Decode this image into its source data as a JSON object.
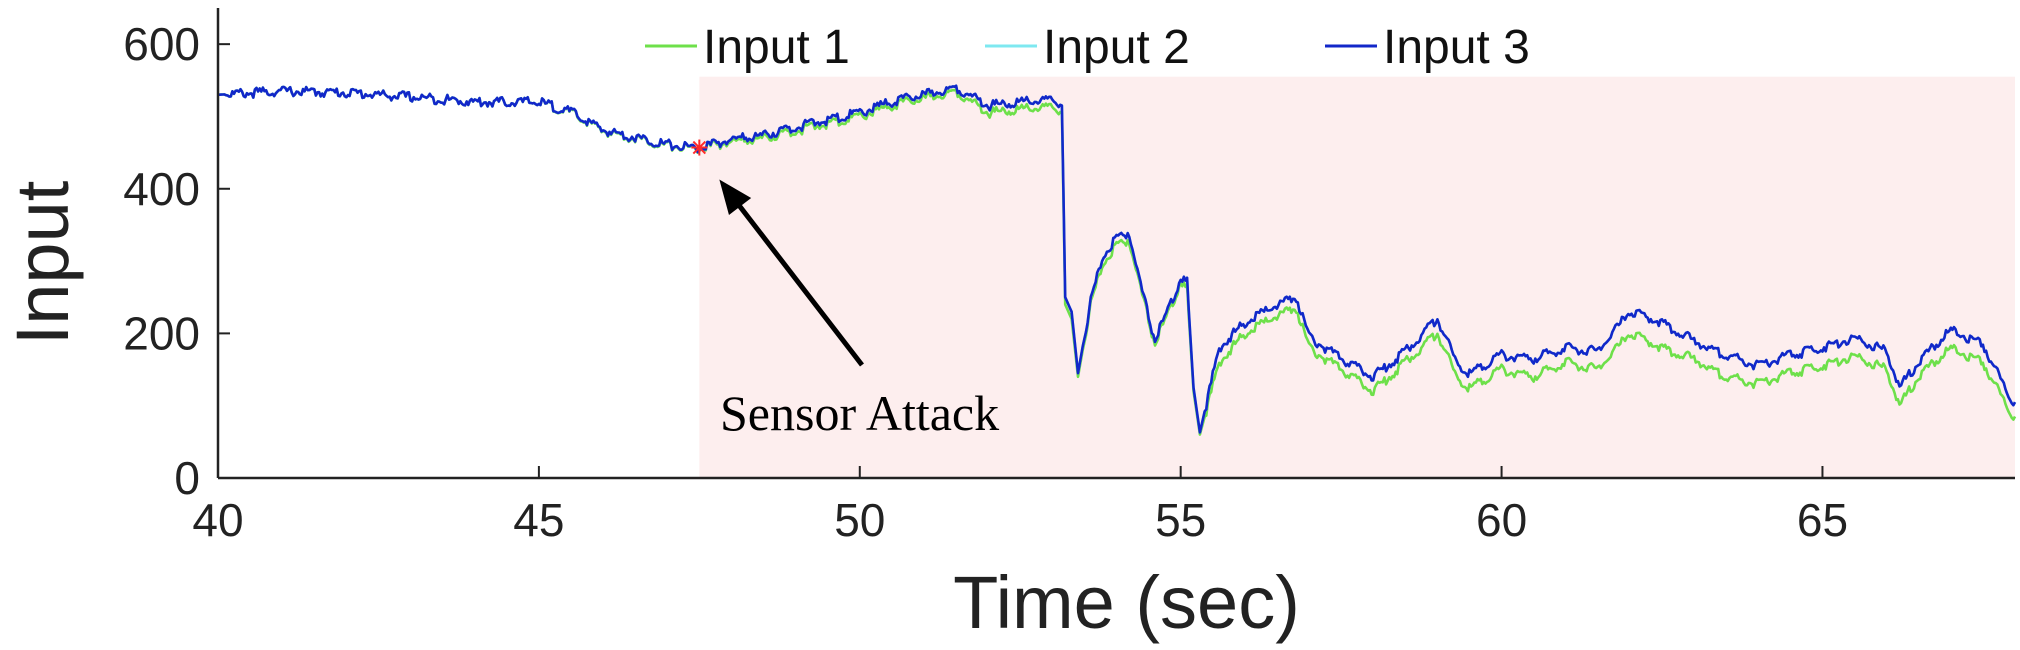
{
  "chart_data": {
    "type": "line",
    "title": "",
    "xlabel": "Time (sec)",
    "ylabel": "Input",
    "xlim": [
      40,
      68
    ],
    "ylim": [
      0,
      650
    ],
    "xticks": [
      "40",
      "45",
      "50",
      "55",
      "60",
      "65"
    ],
    "yticks": [
      "0",
      "200",
      "400",
      "600"
    ],
    "grid": false,
    "legend_position": "top",
    "highlight_region": {
      "x_start": 47.5,
      "x_end": 68,
      "y_end": 555,
      "color": "#fdeeee"
    },
    "annotation": {
      "text": "Sensor Attack",
      "point": [
        47.5,
        457
      ]
    },
    "series": [
      {
        "name": "Input 1",
        "color": "#6ee04a",
        "points": [
          [
            40,
            530
          ],
          [
            41,
            535
          ],
          [
            42,
            533
          ],
          [
            43,
            527
          ],
          [
            44,
            520
          ],
          [
            45,
            520
          ],
          [
            45.5,
            505
          ],
          [
            46,
            480
          ],
          [
            46.5,
            470
          ],
          [
            47,
            460
          ],
          [
            47.5,
            455
          ],
          [
            48,
            465
          ],
          [
            48.5,
            470
          ],
          [
            49,
            480
          ],
          [
            49.5,
            490
          ],
          [
            50,
            500
          ],
          [
            50.5,
            515
          ],
          [
            51,
            525
          ],
          [
            51.5,
            535
          ],
          [
            52,
            505
          ],
          [
            52.5,
            510
          ],
          [
            53,
            512
          ],
          [
            53.15,
            505
          ],
          [
            53.2,
            240
          ],
          [
            53.3,
            220
          ],
          [
            53.4,
            140
          ],
          [
            53.6,
            240
          ],
          [
            53.8,
            300
          ],
          [
            54,
            320
          ],
          [
            54.2,
            330
          ],
          [
            54.35,
            270
          ],
          [
            54.6,
            185
          ],
          [
            55,
            270
          ],
          [
            55.1,
            260
          ],
          [
            55.2,
            120
          ],
          [
            55.3,
            60
          ],
          [
            55.6,
            160
          ],
          [
            56,
            200
          ],
          [
            56.5,
            225
          ],
          [
            56.8,
            235
          ],
          [
            57,
            180
          ],
          [
            57.5,
            150
          ],
          [
            58,
            120
          ],
          [
            58.5,
            160
          ],
          [
            59,
            200
          ],
          [
            59.3,
            140
          ],
          [
            59.5,
            125
          ],
          [
            60,
            150
          ],
          [
            60.5,
            140
          ],
          [
            61,
            160
          ],
          [
            61.5,
            150
          ],
          [
            62,
            200
          ],
          [
            62.5,
            180
          ],
          [
            63,
            165
          ],
          [
            63.5,
            140
          ],
          [
            64,
            130
          ],
          [
            64.5,
            145
          ],
          [
            65,
            155
          ],
          [
            65.5,
            170
          ],
          [
            66,
            150
          ],
          [
            66.2,
            100
          ],
          [
            66.5,
            140
          ],
          [
            67,
            180
          ],
          [
            67.5,
            160
          ],
          [
            67.9,
            95
          ],
          [
            68,
            85
          ]
        ]
      },
      {
        "name": "Input 2",
        "color": "#7ee8f0",
        "points": [
          [
            40,
            530
          ],
          [
            41,
            535
          ],
          [
            42,
            533
          ],
          [
            43,
            527
          ],
          [
            44,
            520
          ],
          [
            45,
            520
          ],
          [
            45.5,
            506
          ],
          [
            46,
            481
          ],
          [
            46.5,
            471
          ],
          [
            47,
            461
          ],
          [
            47.5,
            456
          ],
          [
            48,
            468
          ],
          [
            48.5,
            474
          ],
          [
            49,
            485
          ],
          [
            49.5,
            495
          ],
          [
            50,
            505
          ],
          [
            50.5,
            520
          ],
          [
            51,
            530
          ],
          [
            51.5,
            540
          ],
          [
            52,
            515
          ],
          [
            52.5,
            520
          ],
          [
            53,
            522
          ],
          [
            53.15,
            515
          ],
          [
            53.2,
            250
          ],
          [
            53.3,
            230
          ],
          [
            53.4,
            145
          ],
          [
            53.6,
            245
          ],
          [
            53.8,
            310
          ],
          [
            54,
            330
          ],
          [
            54.2,
            340
          ],
          [
            54.35,
            275
          ],
          [
            54.6,
            190
          ],
          [
            55,
            275
          ],
          [
            55.1,
            270
          ],
          [
            55.2,
            125
          ],
          [
            55.3,
            63
          ],
          [
            55.6,
            180
          ],
          [
            56,
            215
          ],
          [
            56.5,
            240
          ],
          [
            56.8,
            250
          ],
          [
            57,
            195
          ],
          [
            57.5,
            165
          ],
          [
            58,
            140
          ],
          [
            58.5,
            175
          ],
          [
            59,
            220
          ],
          [
            59.3,
            160
          ],
          [
            59.5,
            145
          ],
          [
            60,
            170
          ],
          [
            60.5,
            165
          ],
          [
            61,
            180
          ],
          [
            61.5,
            175
          ],
          [
            62,
            230
          ],
          [
            62.5,
            215
          ],
          [
            63,
            190
          ],
          [
            63.5,
            170
          ],
          [
            64,
            155
          ],
          [
            64.5,
            170
          ],
          [
            65,
            180
          ],
          [
            65.5,
            195
          ],
          [
            66,
            175
          ],
          [
            66.2,
            125
          ],
          [
            66.5,
            160
          ],
          [
            67,
            205
          ],
          [
            67.5,
            185
          ],
          [
            67.9,
            115
          ],
          [
            68,
            105
          ]
        ]
      },
      {
        "name": "Input 3",
        "color": "#1227c9",
        "points": [
          [
            40,
            530
          ],
          [
            41,
            535
          ],
          [
            42,
            533
          ],
          [
            43,
            527
          ],
          [
            44,
            520
          ],
          [
            45,
            520
          ],
          [
            45.5,
            506
          ],
          [
            46,
            481
          ],
          [
            46.5,
            471
          ],
          [
            47,
            461
          ],
          [
            47.5,
            456
          ],
          [
            48,
            468
          ],
          [
            48.5,
            474
          ],
          [
            49,
            485
          ],
          [
            49.5,
            495
          ],
          [
            50,
            505
          ],
          [
            50.5,
            520
          ],
          [
            51,
            530
          ],
          [
            51.5,
            540
          ],
          [
            52,
            515
          ],
          [
            52.5,
            520
          ],
          [
            53,
            522
          ],
          [
            53.15,
            515
          ],
          [
            53.2,
            250
          ],
          [
            53.3,
            230
          ],
          [
            53.4,
            145
          ],
          [
            53.6,
            245
          ],
          [
            53.8,
            310
          ],
          [
            54,
            330
          ],
          [
            54.2,
            340
          ],
          [
            54.35,
            275
          ],
          [
            54.6,
            190
          ],
          [
            55,
            275
          ],
          [
            55.1,
            270
          ],
          [
            55.2,
            125
          ],
          [
            55.3,
            63
          ],
          [
            55.6,
            180
          ],
          [
            56,
            215
          ],
          [
            56.5,
            240
          ],
          [
            56.8,
            250
          ],
          [
            57,
            195
          ],
          [
            57.5,
            165
          ],
          [
            58,
            140
          ],
          [
            58.5,
            175
          ],
          [
            59,
            220
          ],
          [
            59.3,
            160
          ],
          [
            59.5,
            145
          ],
          [
            60,
            170
          ],
          [
            60.5,
            165
          ],
          [
            61,
            180
          ],
          [
            61.5,
            175
          ],
          [
            62,
            230
          ],
          [
            62.5,
            215
          ],
          [
            63,
            190
          ],
          [
            63.5,
            170
          ],
          [
            64,
            155
          ],
          [
            64.5,
            170
          ],
          [
            65,
            180
          ],
          [
            65.5,
            195
          ],
          [
            66,
            175
          ],
          [
            66.2,
            125
          ],
          [
            66.5,
            160
          ],
          [
            67,
            205
          ],
          [
            67.5,
            185
          ],
          [
            67.9,
            115
          ],
          [
            68,
            105
          ]
        ]
      }
    ]
  }
}
